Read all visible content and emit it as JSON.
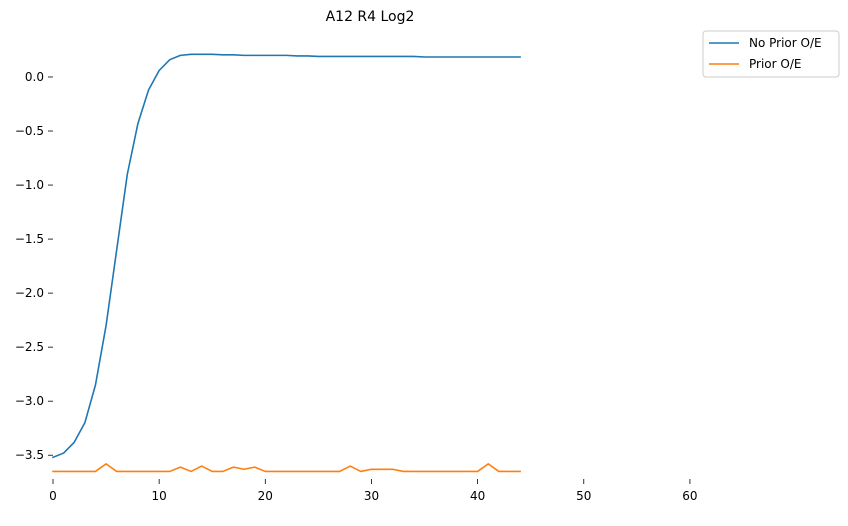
{
  "chart_data": {
    "type": "line",
    "title": "A12 R4 Log2",
    "xlabel": "",
    "ylabel": "",
    "xlim": [
      0,
      65
    ],
    "ylim": [
      -3.72,
      0.37
    ],
    "grid": false,
    "legend_placement": "outside-top-right",
    "x_ticks": [
      0,
      10,
      20,
      30,
      40,
      50,
      60
    ],
    "y_ticks": [
      0.0,
      -0.5,
      -1.0,
      -1.5,
      -2.0,
      -2.5,
      -3.0,
      -3.5
    ],
    "x_tick_labels": [
      "0",
      "10",
      "20",
      "30",
      "40",
      "50",
      "60"
    ],
    "y_tick_labels": [
      "0.0",
      "−0.5",
      "−1.0",
      "−1.5",
      "−2.0",
      "−2.5",
      "−3.0",
      "−3.5"
    ],
    "series": [
      {
        "name": "No Prior O/E",
        "color": "#1f77b4",
        "x": [
          0,
          1,
          2,
          3,
          4,
          5,
          6,
          7,
          8,
          9,
          10,
          11,
          12,
          13,
          14,
          15,
          16,
          17,
          18,
          19,
          20,
          21,
          22,
          23,
          24,
          25,
          26,
          27,
          28,
          29,
          30,
          31,
          32,
          33,
          34,
          35,
          36,
          37,
          38,
          39,
          40,
          41,
          42,
          43,
          44
        ],
        "y": [
          -3.52,
          -3.48,
          -3.38,
          -3.2,
          -2.85,
          -2.3,
          -1.6,
          -0.9,
          -0.43,
          -0.12,
          0.06,
          0.16,
          0.2,
          0.21,
          0.21,
          0.21,
          0.205,
          0.205,
          0.2,
          0.2,
          0.2,
          0.2,
          0.2,
          0.195,
          0.195,
          0.19,
          0.19,
          0.19,
          0.19,
          0.19,
          0.19,
          0.19,
          0.19,
          0.19,
          0.19,
          0.185,
          0.185,
          0.185,
          0.185,
          0.185,
          0.185,
          0.185,
          0.185,
          0.185,
          0.185
        ]
      },
      {
        "name": "Prior O/E",
        "color": "#ff7f0e",
        "x": [
          0,
          1,
          2,
          3,
          4,
          5,
          6,
          7,
          8,
          9,
          10,
          11,
          12,
          13,
          14,
          15,
          16,
          17,
          18,
          19,
          20,
          21,
          22,
          23,
          24,
          25,
          26,
          27,
          28,
          29,
          30,
          31,
          32,
          33,
          34,
          35,
          36,
          37,
          38,
          39,
          40,
          41,
          42,
          43,
          44
        ],
        "y": [
          -3.65,
          -3.65,
          -3.65,
          -3.65,
          -3.65,
          -3.58,
          -3.65,
          -3.65,
          -3.65,
          -3.65,
          -3.65,
          -3.65,
          -3.61,
          -3.65,
          -3.6,
          -3.65,
          -3.65,
          -3.61,
          -3.63,
          -3.61,
          -3.65,
          -3.65,
          -3.65,
          -3.65,
          -3.65,
          -3.65,
          -3.65,
          -3.65,
          -3.6,
          -3.65,
          -3.63,
          -3.63,
          -3.63,
          -3.65,
          -3.65,
          -3.65,
          -3.65,
          -3.65,
          -3.65,
          -3.65,
          -3.65,
          -3.58,
          -3.65,
          -3.65,
          -3.65
        ]
      }
    ]
  }
}
